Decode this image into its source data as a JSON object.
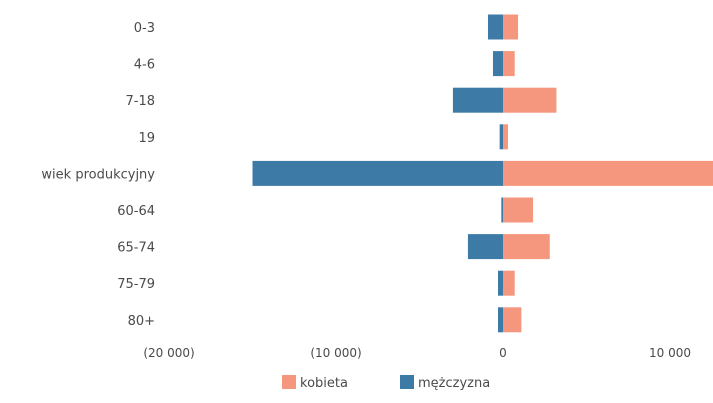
{
  "chart_data": {
    "type": "bar",
    "orientation": "horizontal",
    "stacking": "diverging",
    "categories": [
      "0-3",
      "4-6",
      "7-18",
      "19",
      "wiek produkcyjny",
      "60-64",
      "65-74",
      "75-79",
      "80+"
    ],
    "series": [
      {
        "name": "kobieta",
        "color": "#f4977e",
        "values": [
          900,
          700,
          3200,
          300,
          12600,
          1800,
          2800,
          700,
          1100
        ]
      },
      {
        "name": "mężczyzna",
        "color": "#3d7ba6",
        "values": [
          -900,
          -600,
          -3000,
          -200,
          -15000,
          -100,
          -2100,
          -300,
          -300
        ]
      }
    ],
    "x_ticks": [
      {
        "value": -20000,
        "label": "(20 000)"
      },
      {
        "value": -10000,
        "label": "(10 000)"
      },
      {
        "value": 0,
        "label": "0"
      },
      {
        "value": 10000,
        "label": "10 000"
      }
    ],
    "xlim": [
      -20000,
      12600
    ],
    "grid": false,
    "legend": {
      "position": "bottom",
      "entries": [
        "kobieta",
        "mężczyzna"
      ]
    },
    "title": "",
    "xlabel": "",
    "ylabel": ""
  }
}
